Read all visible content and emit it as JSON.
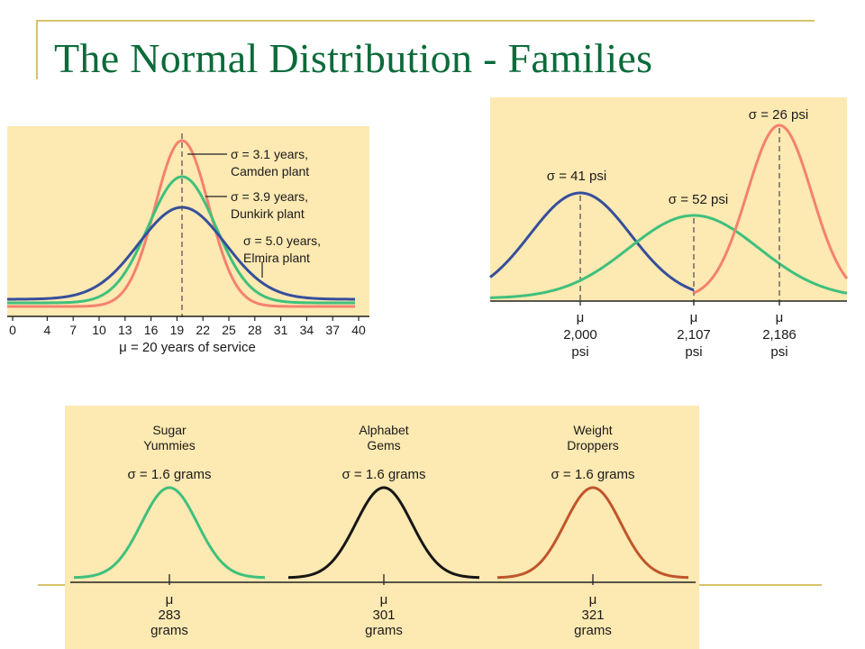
{
  "title": "The Normal Distribution - Families",
  "colors": {
    "plot_bg": "#fde9b2",
    "orange": "#f4826e",
    "green": "#3fc07c",
    "blue": "#364f9b",
    "black": "#161616",
    "rust": "#c0552b",
    "frame_accent": "#d6c36a",
    "title": "#0b6b3a"
  },
  "chart_data": [
    {
      "type": "line",
      "x_ticks": [
        0,
        4,
        7,
        10,
        13,
        16,
        19,
        22,
        25,
        28,
        31,
        34,
        37,
        40
      ],
      "xlabel": "μ = 20 years of service",
      "xlim": [
        0,
        40
      ],
      "mean_line": 20,
      "series": [
        {
          "sigma": 3.1,
          "mean": 20,
          "color": "orange",
          "label_lines": [
            "σ = 3.1 years,",
            "Camden plant"
          ]
        },
        {
          "sigma": 3.9,
          "mean": 20,
          "color": "green",
          "label_lines": [
            "σ = 3.9 years,",
            "Dunkirk plant"
          ]
        },
        {
          "sigma": 5.0,
          "mean": 20,
          "color": "blue",
          "label_lines": [
            "σ = 5.0 years,",
            "Elmira plant"
          ]
        }
      ]
    },
    {
      "type": "line",
      "series": [
        {
          "mean": 2000,
          "sigma": 41,
          "color": "blue",
          "sigma_label": "σ = 41 psi",
          "mu_lines": [
            "μ",
            "2,000",
            "psi"
          ]
        },
        {
          "mean": 2107,
          "sigma": 52,
          "color": "green",
          "sigma_label": "σ = 52 psi",
          "mu_lines": [
            "μ",
            "2,107",
            "psi"
          ]
        },
        {
          "mean": 2186,
          "sigma": 26,
          "color": "orange",
          "sigma_label": "σ = 26 psi",
          "mu_lines": [
            "μ",
            "2,186",
            "psi"
          ]
        }
      ]
    },
    {
      "type": "line",
      "series": [
        {
          "name_lines": [
            "Sugar",
            "Yummies"
          ],
          "sigma_label": "σ = 1.6 grams",
          "mean": 283,
          "sigma": 1.6,
          "color": "green",
          "mu_lines": [
            "μ",
            "283",
            "grams"
          ]
        },
        {
          "name_lines": [
            "Alphabet",
            "Gems"
          ],
          "sigma_label": "σ = 1.6 grams",
          "mean": 301,
          "sigma": 1.6,
          "color": "black",
          "mu_lines": [
            "μ",
            "301",
            "grams"
          ]
        },
        {
          "name_lines": [
            "Weight",
            "Droppers"
          ],
          "sigma_label": "σ = 1.6 grams",
          "mean": 321,
          "sigma": 1.6,
          "color": "rust",
          "mu_lines": [
            "μ",
            "321",
            "grams"
          ]
        }
      ]
    }
  ]
}
